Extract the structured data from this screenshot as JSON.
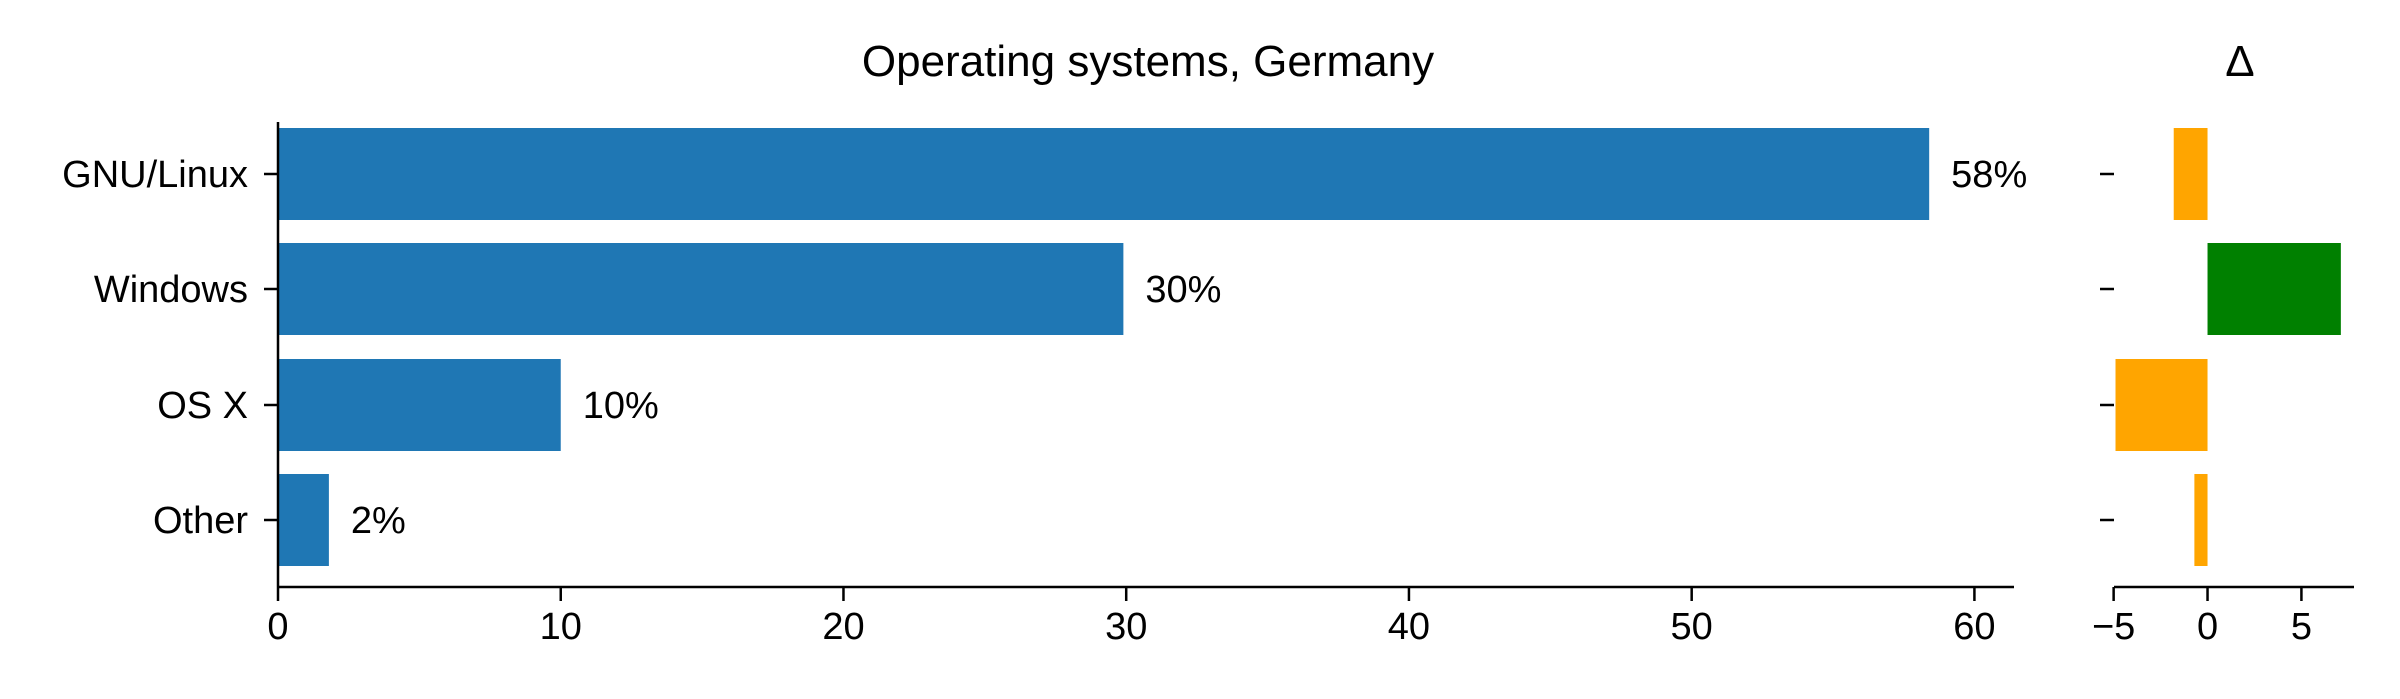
{
  "chart_data": [
    {
      "type": "bar",
      "orientation": "horizontal",
      "title": "Operating systems, Germany",
      "xlabel": "",
      "ylabel": "",
      "categories": [
        "GNU/Linux",
        "Windows",
        "OS X",
        "Other"
      ],
      "values": [
        58.4,
        29.9,
        10.0,
        1.8
      ],
      "value_labels": [
        "58%",
        "30%",
        "10%",
        "2%"
      ],
      "xlim": [
        0,
        61.4
      ],
      "xticks": [
        0,
        10,
        20,
        30,
        40,
        50,
        60
      ],
      "xtick_labels": [
        "0",
        "10",
        "20",
        "30",
        "40",
        "50",
        "60"
      ],
      "bar_color": "#1f77b4",
      "grid": false,
      "legend": "none"
    },
    {
      "type": "bar",
      "orientation": "horizontal",
      "title": "Δ",
      "xlabel": "",
      "ylabel": "",
      "categories": [
        "GNU/Linux",
        "Windows",
        "OS X",
        "Other"
      ],
      "values": [
        -1.8,
        7.1,
        -4.9,
        -0.7
      ],
      "xlim": [
        -5.3,
        7.8
      ],
      "xticks": [
        -5,
        0,
        5
      ],
      "xtick_labels": [
        "−5",
        "0",
        "5"
      ],
      "positive_color": "#008000",
      "negative_color": "#ffa500",
      "grid": false,
      "legend": "none"
    }
  ]
}
